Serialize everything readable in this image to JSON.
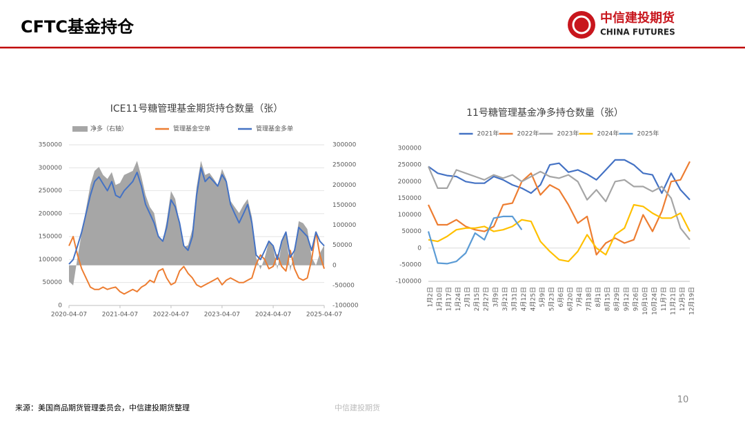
{
  "header": {
    "title": "CFTC基金持仓",
    "logo_cn": "中信建投期货",
    "logo_en": "CHINA FUTURES"
  },
  "footer": {
    "source": "来源：美国商品期货管理委员会，中信建投期货整理",
    "center": "中信建投期货",
    "page": "10"
  },
  "chart_data": [
    {
      "type": "line",
      "title": "ICE11号糖管理基金期货持仓数量（张）",
      "x": [
        "2020-04-07",
        "2020-05-07",
        "2020-06-07",
        "2020-07-07",
        "2020-08-07",
        "2020-09-07",
        "2020-10-07",
        "2020-11-07",
        "2020-12-07",
        "2021-01-07",
        "2021-02-07",
        "2021-03-07",
        "2021-04-07",
        "2021-05-07",
        "2021-06-07",
        "2021-07-07",
        "2021-08-07",
        "2021-09-07",
        "2021-10-07",
        "2021-11-07",
        "2021-12-07",
        "2022-01-07",
        "2022-02-07",
        "2022-03-07",
        "2022-04-07",
        "2022-05-07",
        "2022-06-07",
        "2022-07-07",
        "2022-08-07",
        "2022-09-07",
        "2022-10-07",
        "2022-11-07",
        "2022-12-07",
        "2023-01-07",
        "2023-02-07",
        "2023-03-07",
        "2023-04-07",
        "2023-05-07",
        "2023-06-07",
        "2023-07-07",
        "2023-08-07",
        "2023-09-07",
        "2023-10-07",
        "2023-11-07",
        "2023-12-07",
        "2024-01-07",
        "2024-02-07",
        "2024-03-07",
        "2024-04-07",
        "2024-05-07",
        "2024-06-07",
        "2024-07-07",
        "2024-08-07",
        "2024-09-07",
        "2024-10-07",
        "2024-11-07",
        "2024-12-07",
        "2025-01-07",
        "2025-02-07",
        "2025-03-07",
        "2025-04-07"
      ],
      "series": [
        {
          "name": "净多（右轴）",
          "type": "area",
          "axis": "y2",
          "color": "#a6a6a6",
          "values": [
            -40000,
            -50000,
            20000,
            80000,
            140000,
            200000,
            235000,
            245000,
            225000,
            215000,
            232000,
            200000,
            205000,
            225000,
            230000,
            235000,
            260000,
            220000,
            175000,
            145000,
            130000,
            75000,
            60000,
            110000,
            185000,
            165000,
            105000,
            45000,
            50000,
            90000,
            195000,
            260000,
            225000,
            230000,
            215000,
            200000,
            240000,
            215000,
            160000,
            145000,
            130000,
            150000,
            165000,
            120000,
            20000,
            -10000,
            20000,
            60000,
            45000,
            -10000,
            55000,
            85000,
            -15000,
            40000,
            110000,
            105000,
            90000,
            20000,
            0,
            30000,
            50000
          ]
        },
        {
          "name": "管理基金空单",
          "type": "line",
          "color": "#ed7d31",
          "values": [
            130000,
            150000,
            110000,
            80000,
            60000,
            40000,
            35000,
            35000,
            40000,
            35000,
            38000,
            40000,
            30000,
            25000,
            30000,
            35000,
            30000,
            40000,
            45000,
            55000,
            50000,
            75000,
            80000,
            60000,
            45000,
            50000,
            75000,
            85000,
            70000,
            60000,
            45000,
            40000,
            45000,
            50000,
            55000,
            60000,
            45000,
            55000,
            60000,
            55000,
            50000,
            50000,
            55000,
            60000,
            90000,
            110000,
            100000,
            80000,
            85000,
            110000,
            85000,
            75000,
            120000,
            80000,
            60000,
            55000,
            60000,
            100000,
            160000,
            110000,
            80000
          ]
        },
        {
          "name": "管理基金多单",
          "type": "line",
          "color": "#4472c4",
          "values": [
            90000,
            100000,
            130000,
            160000,
            200000,
            240000,
            270000,
            280000,
            265000,
            250000,
            270000,
            240000,
            235000,
            250000,
            260000,
            270000,
            290000,
            260000,
            220000,
            200000,
            180000,
            150000,
            140000,
            170000,
            230000,
            215000,
            180000,
            130000,
            120000,
            150000,
            240000,
            300000,
            270000,
            280000,
            270000,
            260000,
            285000,
            270000,
            220000,
            200000,
            180000,
            200000,
            220000,
            180000,
            110000,
            100000,
            120000,
            140000,
            130000,
            100000,
            140000,
            160000,
            105000,
            120000,
            170000,
            160000,
            150000,
            120000,
            160000,
            140000,
            130000
          ]
        }
      ],
      "xticks": [
        "2020-04-07",
        "2021-04-07",
        "2022-04-07",
        "2023-04-07",
        "2024-04-07",
        "2025-04-07"
      ],
      "ylim": [
        0,
        350000
      ],
      "yticks": [
        0,
        50000,
        100000,
        150000,
        200000,
        250000,
        300000,
        350000
      ],
      "y2lim": [
        -100000,
        300000
      ],
      "y2ticks": [
        -100000,
        -50000,
        0,
        50000,
        100000,
        150000,
        200000,
        250000,
        300000
      ],
      "grid": true,
      "legend": "top"
    },
    {
      "type": "line",
      "title": "11号糖管理基金净多持仓数量（张）",
      "categories": [
        "1月2日",
        "1月10日",
        "1月17日",
        "1月24日",
        "2月1日",
        "2月15日",
        "2月27日",
        "3月9日",
        "3月21日",
        "3月31日",
        "4月12日",
        "4月25日",
        "5月9日",
        "5月23日",
        "6月6日",
        "6月20日",
        "7月4日",
        "7月18日",
        "8月1日",
        "8月15日",
        "8月29日",
        "9月12日",
        "9月26日",
        "10月10日",
        "10月24日",
        "11月7日",
        "11月21日",
        "12月5日",
        "12月19日"
      ],
      "series": [
        {
          "name": "2021年",
          "color": "#4472c4",
          "values": [
            245000,
            225000,
            218000,
            215000,
            200000,
            195000,
            195000,
            215000,
            205000,
            190000,
            180000,
            165000,
            190000,
            250000,
            255000,
            228000,
            235000,
            222000,
            205000,
            235000,
            265000,
            265000,
            250000,
            225000,
            220000,
            165000,
            225000,
            175000,
            145000
          ]
        },
        {
          "name": "2022年",
          "color": "#ed7d31",
          "values": [
            130000,
            70000,
            70000,
            85000,
            65000,
            55000,
            50000,
            65000,
            130000,
            135000,
            200000,
            225000,
            160000,
            190000,
            175000,
            130000,
            75000,
            95000,
            -20000,
            15000,
            30000,
            15000,
            25000,
            100000,
            50000,
            110000,
            200000,
            205000,
            260000
          ]
        },
        {
          "name": "2023年",
          "color": "#a5a5a5",
          "values": [
            245000,
            180000,
            180000,
            235000,
            225000,
            215000,
            205000,
            220000,
            210000,
            220000,
            200000,
            215000,
            230000,
            215000,
            210000,
            220000,
            200000,
            145000,
            175000,
            140000,
            200000,
            205000,
            185000,
            185000,
            170000,
            185000,
            150000,
            60000,
            25000
          ]
        },
        {
          "name": "2024年",
          "color": "#ffc000",
          "values": [
            25000,
            20000,
            35000,
            55000,
            60000,
            60000,
            65000,
            50000,
            55000,
            65000,
            85000,
            80000,
            20000,
            -10000,
            -35000,
            -40000,
            -10000,
            40000,
            0,
            -20000,
            40000,
            60000,
            130000,
            125000,
            105000,
            90000,
            90000,
            105000,
            50000
          ]
        },
        {
          "name": "2025年",
          "color": "#5b9bd5",
          "values": [
            50000,
            -45000,
            -47000,
            -40000,
            -15000,
            45000,
            25000,
            90000,
            95000,
            95000,
            55000,
            null,
            null,
            null,
            null,
            null,
            null,
            null,
            null,
            null,
            null,
            null,
            null,
            null,
            null,
            null,
            null,
            null,
            null
          ]
        }
      ],
      "ylim": [
        -100000,
        300000
      ],
      "yticks": [
        -100000,
        -50000,
        0,
        50000,
        100000,
        150000,
        200000,
        250000,
        300000
      ],
      "grid": false,
      "legend": "top"
    }
  ]
}
